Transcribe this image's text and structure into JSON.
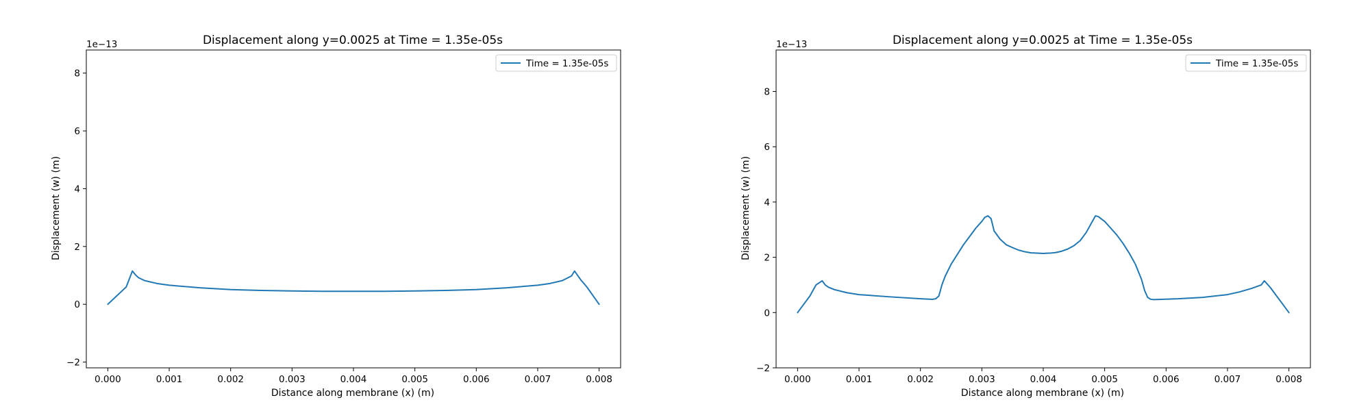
{
  "chart_data": [
    {
      "type": "line",
      "title": "Displacement along y=0.0025 at Time = 1.35e-05s",
      "xlabel": "Distance along membrane (x) (m)",
      "ylabel": "Displacement (w) (m)",
      "y_offset_label": "1e−13",
      "xlim": [
        -0.00035,
        0.00835
      ],
      "ylim": [
        -2.2,
        8.8
      ],
      "x_ticks": [
        0,
        0.001,
        0.002,
        0.003,
        0.004,
        0.005,
        0.006,
        0.007,
        0.008
      ],
      "x_tick_labels": [
        "0.000",
        "0.001",
        "0.002",
        "0.003",
        "0.004",
        "0.005",
        "0.006",
        "0.007",
        "0.008"
      ],
      "y_ticks": [
        -2,
        0,
        2,
        4,
        6,
        8
      ],
      "y_tick_labels": [
        "−2",
        "0",
        "2",
        "4",
        "6",
        "8"
      ],
      "grid": false,
      "legend_position": "top-right",
      "colors": {
        "line": "#1f77b4"
      },
      "series": [
        {
          "name": "Time = 1.35e-05s",
          "x": [
            0,
            0.0001,
            0.0002,
            0.0003,
            0.0004,
            0.00045,
            0.0005,
            0.0006,
            0.0008,
            0.001,
            0.0015,
            0.002,
            0.0025,
            0.003,
            0.0035,
            0.004,
            0.0045,
            0.005,
            0.0055,
            0.006,
            0.0065,
            0.007,
            0.0072,
            0.0074,
            0.00755,
            0.0076,
            0.0077,
            0.0078,
            0.0079,
            0.008
          ],
          "y": [
            0,
            0.2,
            0.4,
            0.6,
            1.15,
            1.02,
            0.92,
            0.82,
            0.72,
            0.66,
            0.57,
            0.51,
            0.48,
            0.46,
            0.45,
            0.45,
            0.45,
            0.46,
            0.48,
            0.51,
            0.57,
            0.66,
            0.72,
            0.82,
            0.98,
            1.15,
            0.85,
            0.6,
            0.3,
            0
          ]
        }
      ]
    },
    {
      "type": "line",
      "title": "Displacement along y=0.0025 at Time = 1.35e-05s",
      "xlabel": "Distance along membrane (x) (m)",
      "ylabel": "Displacement (w) (m)",
      "y_offset_label": "1e−13",
      "xlim": [
        -0.00035,
        0.00835
      ],
      "ylim": [
        -2.0,
        9.5
      ],
      "x_ticks": [
        0,
        0.001,
        0.002,
        0.003,
        0.004,
        0.005,
        0.006,
        0.007,
        0.008
      ],
      "x_tick_labels": [
        "0.000",
        "0.001",
        "0.002",
        "0.003",
        "0.004",
        "0.005",
        "0.006",
        "0.007",
        "0.008"
      ],
      "y_ticks": [
        -2,
        0,
        2,
        4,
        6,
        8
      ],
      "y_tick_labels": [
        "−2",
        "0",
        "2",
        "4",
        "6",
        "8"
      ],
      "grid": false,
      "legend_position": "top-right",
      "colors": {
        "line": "#1f77b4"
      },
      "series": [
        {
          "name": "Time = 1.35e-05s",
          "x": [
            0,
            0.0001,
            0.0002,
            0.0003,
            0.0004,
            0.00045,
            0.0005,
            0.0006,
            0.0008,
            0.001,
            0.0015,
            0.002,
            0.0022,
            0.00225,
            0.0023,
            0.00235,
            0.0024,
            0.0025,
            0.0026,
            0.0027,
            0.0028,
            0.0029,
            0.003,
            0.00305,
            0.0031,
            0.00315,
            0.0032,
            0.0033,
            0.0034,
            0.0035,
            0.0036,
            0.0037,
            0.0038,
            0.0039,
            0.004,
            0.0041,
            0.0042,
            0.0043,
            0.0044,
            0.0045,
            0.0046,
            0.0047,
            0.0048,
            0.00485,
            0.0049,
            0.00495,
            0.005,
            0.0051,
            0.0052,
            0.0053,
            0.0054,
            0.0055,
            0.0056,
            0.00565,
            0.0057,
            0.00575,
            0.0058,
            0.0062,
            0.0066,
            0.007,
            0.0072,
            0.0074,
            0.00755,
            0.0076,
            0.0077,
            0.0078,
            0.0079,
            0.008
          ],
          "y": [
            0,
            0.3,
            0.6,
            1.0,
            1.15,
            1.0,
            0.92,
            0.83,
            0.72,
            0.65,
            0.57,
            0.5,
            0.48,
            0.5,
            0.6,
            1.0,
            1.3,
            1.75,
            2.1,
            2.45,
            2.75,
            3.05,
            3.3,
            3.45,
            3.5,
            3.4,
            2.95,
            2.65,
            2.45,
            2.35,
            2.26,
            2.2,
            2.16,
            2.15,
            2.14,
            2.15,
            2.17,
            2.22,
            2.3,
            2.42,
            2.6,
            2.9,
            3.3,
            3.5,
            3.47,
            3.38,
            3.3,
            3.05,
            2.8,
            2.5,
            2.15,
            1.75,
            1.2,
            0.8,
            0.55,
            0.48,
            0.47,
            0.5,
            0.55,
            0.65,
            0.75,
            0.88,
            1.0,
            1.15,
            0.9,
            0.6,
            0.3,
            0
          ]
        }
      ]
    }
  ]
}
